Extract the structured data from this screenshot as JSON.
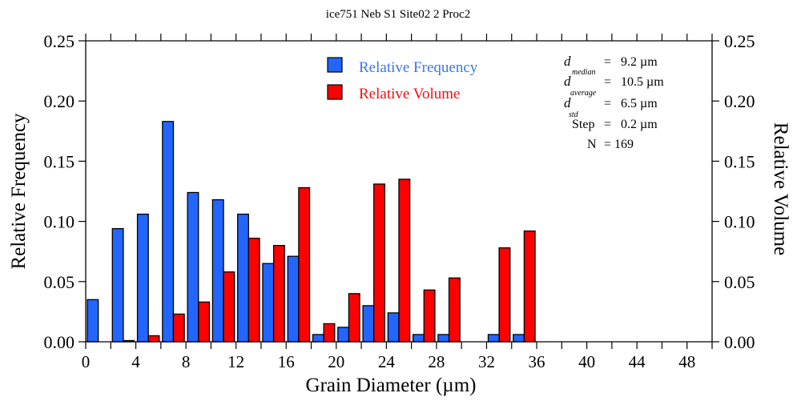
{
  "chart_data": {
    "type": "bar",
    "title": "ice751 Neb S1 Site02 2 Proc2",
    "xlabel": "Grain Diameter (µm)",
    "ylabel": "Relative Frequency",
    "y2label": "Relative Volume",
    "xlim": [
      0,
      50
    ],
    "ylim": [
      0,
      0.25
    ],
    "y2lim": [
      0,
      0.25
    ],
    "x_ticks": [
      0,
      4,
      8,
      12,
      16,
      20,
      24,
      28,
      32,
      36,
      40,
      44,
      48
    ],
    "x_tick_labels": [
      "0",
      "4",
      "8",
      "12",
      "16",
      "20",
      "24",
      "28",
      "32",
      "36",
      "40",
      "44",
      "48"
    ],
    "x_minor_step": 2,
    "y_ticks": [
      0,
      0.05,
      0.1,
      0.15,
      0.2,
      0.25
    ],
    "y_tick_labels": [
      "0.00",
      "0.05",
      "0.10",
      "0.15",
      "0.20",
      "0.25"
    ],
    "grid": false,
    "legend_position": "top-center",
    "bin_width": 2,
    "bin_starts": [
      0,
      2,
      4,
      6,
      8,
      10,
      12,
      14,
      16,
      18,
      20,
      22,
      24,
      26,
      28,
      30,
      32,
      34
    ],
    "series": [
      {
        "name": "Relative Frequency",
        "color": "#2266ff",
        "axis": "left",
        "values": [
          0.035,
          0.094,
          0.106,
          0.183,
          0.124,
          0.118,
          0.106,
          0.065,
          0.071,
          0.006,
          0.012,
          0.03,
          0.024,
          0.006,
          0.006,
          0.0,
          0.006,
          0.006
        ]
      },
      {
        "name": "Relative Volume",
        "color": "#ff0000",
        "axis": "right",
        "values": [
          0.0,
          0.001,
          0.005,
          0.023,
          0.033,
          0.058,
          0.086,
          0.08,
          0.128,
          0.015,
          0.04,
          0.131,
          0.135,
          0.043,
          0.053,
          0.0,
          0.078,
          0.092
        ]
      }
    ],
    "stats": [
      {
        "symbol": "d",
        "subscript": "median",
        "value": "9.2 µm"
      },
      {
        "symbol": "d",
        "subscript": "average",
        "value": "10.5 µm"
      },
      {
        "symbol": "d",
        "subscript": "std",
        "value": "6.5 µm"
      },
      {
        "symbol": "Step",
        "subscript": "",
        "value": "0.2 µm"
      },
      {
        "symbol": "N",
        "subscript": "",
        "value": "169"
      }
    ]
  }
}
